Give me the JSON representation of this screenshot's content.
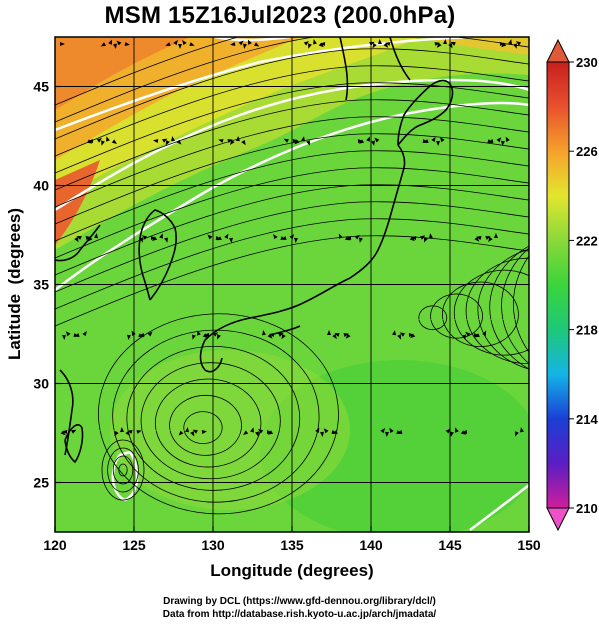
{
  "title": "MSM 15Z16Jul2023 (200.0hPa)",
  "axes": {
    "xlabel": "Longitude (degrees)",
    "ylabel": "Latitude  (degrees)",
    "xlim": [
      120,
      150
    ],
    "ylim": [
      22.5,
      47.5
    ],
    "xticks": [
      "120",
      "125",
      "130",
      "135",
      "140",
      "145",
      "150"
    ],
    "yticks": [
      "25",
      "30",
      "35",
      "40",
      "45"
    ],
    "grid": true
  },
  "colorbar": {
    "range": [
      210,
      230
    ],
    "ticks": [
      "230",
      "226",
      "222",
      "218",
      "214",
      "210"
    ],
    "colors": [
      "#d01e9a",
      "#5b1ec4",
      "#1a3fd6",
      "#14b4e6",
      "#1ec878",
      "#3bd43b",
      "#8ad83a",
      "#e2e62e",
      "#f6a12c",
      "#e8502e",
      "#c8201e"
    ]
  },
  "map": {
    "main_features": [
      "cyclonic-vortex-east-of-honshu",
      "anticyclone-over-east-china-sea",
      "jet-stream-north"
    ],
    "contour_color": "#ffffff"
  },
  "footer": {
    "line1": "Drawing by DCL (https://www.gfd-dennou.org/library/dcl/)",
    "line2": "Data from http://database.rish.kyoto-u.ac.jp/arch/jmadata/"
  }
}
